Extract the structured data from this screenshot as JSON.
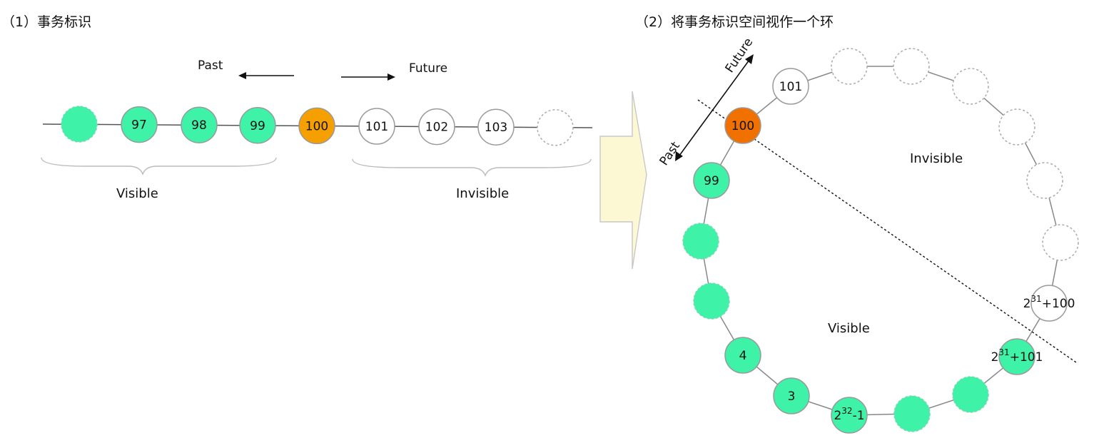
{
  "panel1": {
    "title": "（1）事务标识",
    "past_label": "Past",
    "future_label": "Future",
    "visible_label": "Visible",
    "invisible_label": "Invisible",
    "nodes": [
      {
        "label": "",
        "state": "visible",
        "dashed": true
      },
      {
        "label": "97",
        "state": "visible",
        "dashed": false
      },
      {
        "label": "98",
        "state": "visible",
        "dashed": false
      },
      {
        "label": "99",
        "state": "visible",
        "dashed": false
      },
      {
        "label": "100",
        "state": "current",
        "dashed": false
      },
      {
        "label": "101",
        "state": "invisible",
        "dashed": false
      },
      {
        "label": "102",
        "state": "invisible",
        "dashed": false
      },
      {
        "label": "103",
        "state": "invisible",
        "dashed": false
      },
      {
        "label": "",
        "state": "invisible",
        "dashed": true
      }
    ]
  },
  "panel2": {
    "title": "（2）将事务标识空间视作一个环",
    "past_label": "Past",
    "future_label": "Future",
    "visible_label": "Visible",
    "invisible_label": "Invisible",
    "ring_nodes": {
      "n100": "100",
      "n101": "101",
      "n99": "99",
      "n4": "4",
      "n3": "3",
      "n2p32m1": {
        "base": "2",
        "exp": "32",
        "suffix": "-1"
      },
      "n2p31p100": {
        "base": "2",
        "exp": "31",
        "suffix": "+100"
      },
      "n2p31p101": {
        "base": "2",
        "exp": "31",
        "suffix": "+101"
      }
    }
  },
  "colors": {
    "visible": "#3ef2a8",
    "current_linear": "#f5a000",
    "current_ring": "#f07000",
    "invisible": "#ffffff",
    "arrow_fill": "#fdf8d4"
  }
}
